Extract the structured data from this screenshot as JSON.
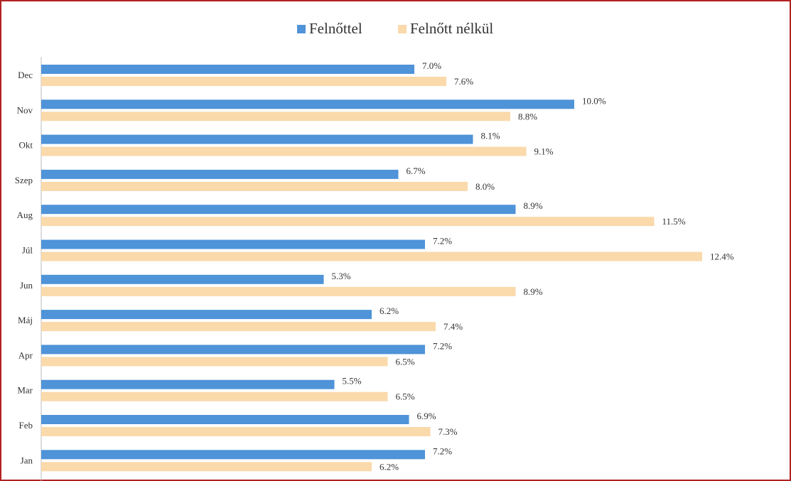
{
  "chart_data": {
    "type": "bar",
    "orientation": "horizontal",
    "categories": [
      "Dec",
      "Nov",
      "Okt",
      "Szep",
      "Aug",
      "Júl",
      "Jun",
      "Máj",
      "Apr",
      "Mar",
      "Feb",
      "Jan"
    ],
    "series": [
      {
        "name": "Felnőttel",
        "color": "#4f93d8",
        "values": [
          7.0,
          10.0,
          8.1,
          6.7,
          8.9,
          7.2,
          5.3,
          6.2,
          7.2,
          5.5,
          6.9,
          7.2
        ],
        "value_labels": [
          "7.0%",
          "10.0%",
          "8.1%",
          "6.7%",
          "8.9%",
          "7.2%",
          "5.3%",
          "6.2%",
          "7.2%",
          "5.5%",
          "6.9%",
          "7.2%"
        ]
      },
      {
        "name": "Felnőtt nélkül",
        "color": "#fad9ab",
        "values": [
          7.6,
          8.8,
          9.1,
          8.0,
          11.5,
          12.4,
          8.9,
          7.4,
          6.5,
          6.5,
          7.3,
          6.2
        ],
        "value_labels": [
          "7.6%",
          "8.8%",
          "9.1%",
          "8.0%",
          "11.5%",
          "12.4%",
          "8.9%",
          "7.4%",
          "6.5%",
          "6.5%",
          "7.3%",
          "6.2%"
        ]
      }
    ],
    "legend": "top"
  }
}
